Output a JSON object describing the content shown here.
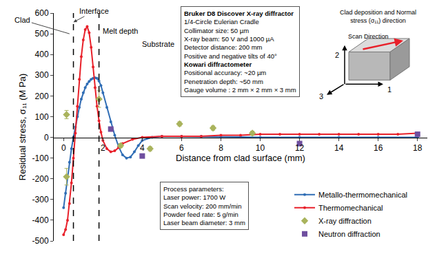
{
  "chart_data": {
    "type": "line",
    "xlabel": "Distance from clad surface (mm)",
    "ylabel": "Residual stress, σ₁₁ (M Pa)",
    "xlim": [
      -0.5,
      18.5
    ],
    "xticks": [
      0,
      2,
      4,
      6,
      8,
      10,
      12,
      14,
      16,
      18
    ],
    "ylim": [
      -500,
      600
    ],
    "yticks": [
      -500,
      -400,
      -300,
      -200,
      -100,
      0,
      100,
      200,
      300,
      400,
      500,
      600
    ],
    "grid": false,
    "legend": "lower right",
    "series": [
      {
        "name": "Metallo-thermomechanical",
        "type": "line",
        "marker": "circle",
        "color": "#2f6db5",
        "x": [
          0,
          0.1,
          0.2,
          0.3,
          0.4,
          0.5,
          0.6,
          0.7,
          0.8,
          0.9,
          1.0,
          1.1,
          1.2,
          1.3,
          1.4,
          1.5,
          1.6,
          1.7,
          1.8,
          1.9,
          2.0,
          2.2,
          2.4,
          2.6,
          2.8,
          3.0,
          3.2,
          3.4,
          3.6,
          3.8,
          4.0,
          4.5,
          5,
          6,
          7,
          8,
          9,
          10,
          12,
          14,
          16,
          18
        ],
        "values": [
          -340,
          -270,
          -190,
          -120,
          -55,
          0,
          50,
          100,
          145,
          185,
          215,
          240,
          258,
          270,
          280,
          285,
          288,
          285,
          272,
          250,
          215,
          145,
          75,
          10,
          -45,
          -85,
          -100,
          -95,
          -70,
          -40,
          -15,
          0,
          5,
          5,
          5,
          3,
          2,
          0,
          0,
          0,
          0,
          0
        ]
      },
      {
        "name": "Thermomechanical",
        "type": "line",
        "marker": "circle",
        "color": "#e8202a",
        "x": [
          0,
          0.1,
          0.2,
          0.3,
          0.4,
          0.5,
          0.6,
          0.7,
          0.8,
          0.9,
          1.0,
          1.1,
          1.2,
          1.3,
          1.4,
          1.5,
          1.6,
          1.7,
          1.8,
          1.9,
          2.0,
          2.2,
          2.4,
          2.6,
          2.8,
          3.0,
          3.5,
          4,
          5,
          6,
          7,
          8,
          9,
          10,
          11,
          12,
          13,
          14,
          15,
          16,
          17,
          18
        ],
        "values": [
          -470,
          -445,
          -400,
          -320,
          -220,
          -100,
          20,
          150,
          280,
          390,
          470,
          520,
          535,
          505,
          435,
          340,
          240,
          150,
          80,
          25,
          -15,
          -55,
          -70,
          -65,
          -50,
          -30,
          -10,
          0,
          5,
          5,
          5,
          10,
          10,
          15,
          15,
          15,
          15,
          15,
          15,
          15,
          15,
          20
        ]
      },
      {
        "name": "X-ray diffraction",
        "type": "scatter",
        "marker": "diamond",
        "color": "#a9b35c",
        "x": [
          0.15,
          0.15,
          1.8,
          2.9,
          4.4,
          5.9,
          7.6,
          9.6
        ],
        "values": [
          110,
          -190,
          185,
          -40,
          -55,
          65,
          45,
          20
        ],
        "error": [
          20,
          40,
          40,
          10,
          10,
          10,
          10,
          10
        ]
      },
      {
        "name": "Neutron diffraction",
        "type": "scatter",
        "marker": "square",
        "color": "#6f4f9f",
        "x": [
          2.4,
          4.0,
          12,
          18
        ],
        "values": [
          40,
          -90,
          -30,
          15
        ]
      }
    ],
    "vlines": [
      {
        "x": 0.5,
        "label": "Interface",
        "line_style": "dash"
      },
      {
        "x": 1.8,
        "label": "Melt depth",
        "line_style": "dash"
      }
    ],
    "clad_label": {
      "text": "Clad",
      "x": 0.3,
      "y": 500
    },
    "substrate_label": {
      "text": "Substrate",
      "x": 4.8,
      "y": 450
    },
    "info_boxes": [
      {
        "sections": [
          {
            "heading": "Bruker D8 Discover X-ray diffractor",
            "lines": [
              "1/4-Circle Eulerian Cradle",
              "Collimator size: 50 µm",
              "X-ray beam: 50 V and 1000 µA",
              "Detector distance: 200 mm",
              "Positive and negative tilts of 40°"
            ]
          },
          {
            "heading": "Kowari diffractometer",
            "lines": [
              "Positional accuracy: ~20 µm",
              "Penetration depth: ~50 mm",
              "Gauge volume : 2 mm × 2 mm × 3 mm"
            ]
          }
        ]
      },
      {
        "sections": [
          {
            "lines": [
              "Process parameters:",
              "Laser power: 1700 W",
              "Scan velocity: 200 mm/min",
              "Powder feed rate: 5 g/min",
              "Laser beam diameter: 3 mm"
            ]
          }
        ]
      }
    ],
    "diagram": {
      "title_lines": [
        "Clad deposition and Normal",
        "stress (σ₁₁) direction"
      ],
      "scan_label": "Scan Direction",
      "axis_labels": [
        "1",
        "2",
        "3"
      ]
    }
  }
}
